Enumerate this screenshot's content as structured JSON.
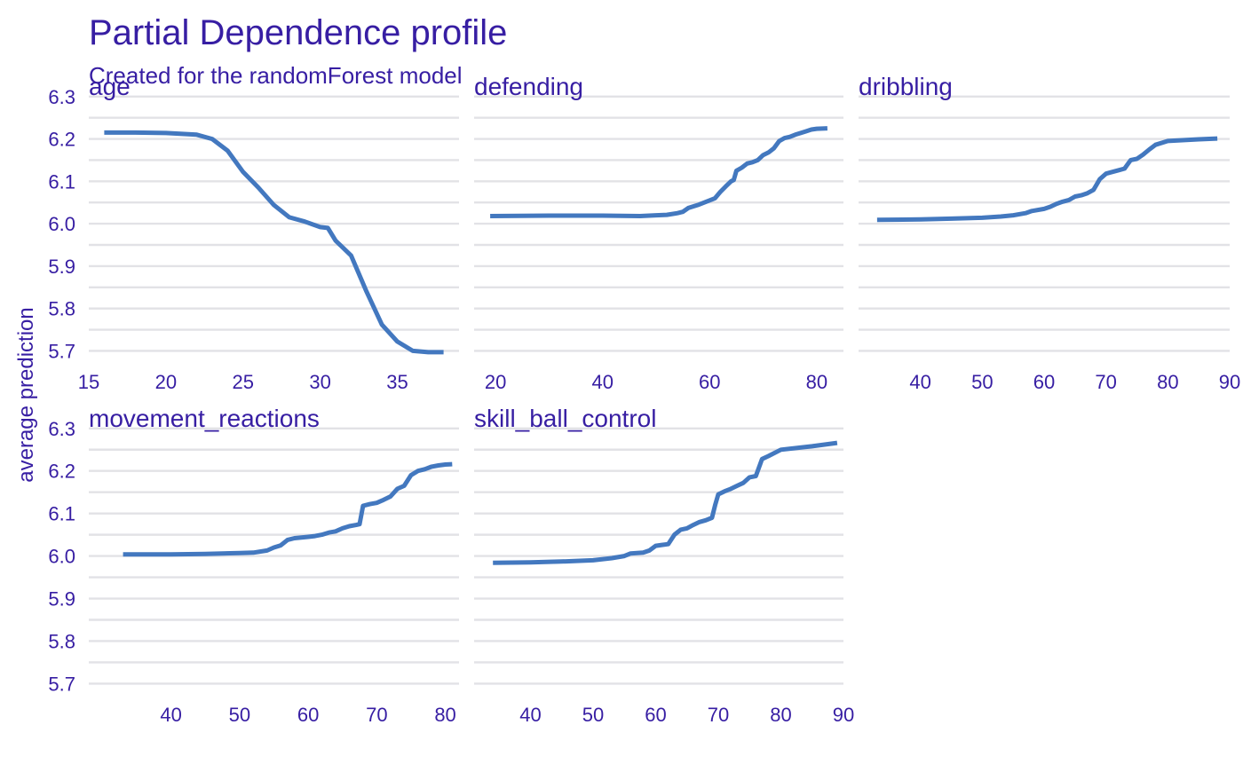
{
  "title": "Partial Dependence profile",
  "subtitle": "Created for the randomForest model",
  "ylabel": "average prediction",
  "colors": {
    "text": "#371ea3",
    "line": "#4378bf",
    "grid": "#e2e2e6"
  },
  "chart_data": {
    "type": "line",
    "ylim": [
      5.68,
      6.31
    ],
    "yticks": [
      5.7,
      5.8,
      5.9,
      6.0,
      6.1,
      6.2,
      6.3
    ],
    "ytick_labels": [
      "5.7",
      "5.8",
      "5.9",
      "6.0",
      "6.1",
      "6.2",
      "6.3"
    ],
    "grid": true,
    "legend": "none",
    "facets": [
      {
        "label": "age",
        "xlim": [
          15,
          39
        ],
        "xticks": [
          15,
          20,
          25,
          30,
          35
        ],
        "xtick_labels": [
          "15",
          "20",
          "25",
          "30",
          "35"
        ],
        "points": [
          [
            16,
            6.215
          ],
          [
            18,
            6.215
          ],
          [
            20,
            6.214
          ],
          [
            22,
            6.21
          ],
          [
            23,
            6.2
          ],
          [
            24,
            6.172
          ],
          [
            25,
            6.122
          ],
          [
            26,
            6.085
          ],
          [
            27,
            6.044
          ],
          [
            28,
            6.015
          ],
          [
            29,
            6.005
          ],
          [
            30,
            5.992
          ],
          [
            30.5,
            5.99
          ],
          [
            31,
            5.96
          ],
          [
            32,
            5.925
          ],
          [
            33,
            5.84
          ],
          [
            34,
            5.762
          ],
          [
            35,
            5.722
          ],
          [
            36,
            5.7
          ],
          [
            37,
            5.697
          ],
          [
            38,
            5.697
          ]
        ]
      },
      {
        "label": "defending",
        "xlim": [
          16,
          85
        ],
        "xticks": [
          20,
          40,
          60,
          80
        ],
        "xtick_labels": [
          "20",
          "40",
          "60",
          "80"
        ],
        "points": [
          [
            19,
            6.018
          ],
          [
            30,
            6.019
          ],
          [
            40,
            6.019
          ],
          [
            47,
            6.018
          ],
          [
            50,
            6.02
          ],
          [
            52,
            6.021
          ],
          [
            54,
            6.025
          ],
          [
            55,
            6.028
          ],
          [
            56,
            6.037
          ],
          [
            58,
            6.045
          ],
          [
            60,
            6.055
          ],
          [
            61,
            6.06
          ],
          [
            62,
            6.075
          ],
          [
            63,
            6.088
          ],
          [
            64,
            6.1
          ],
          [
            64.5,
            6.103
          ],
          [
            65,
            6.125
          ],
          [
            66,
            6.132
          ],
          [
            67,
            6.142
          ],
          [
            68,
            6.145
          ],
          [
            69,
            6.15
          ],
          [
            70,
            6.162
          ],
          [
            71,
            6.168
          ],
          [
            72,
            6.178
          ],
          [
            73,
            6.195
          ],
          [
            74,
            6.202
          ],
          [
            75,
            6.205
          ],
          [
            76,
            6.21
          ],
          [
            77,
            6.214
          ],
          [
            78,
            6.218
          ],
          [
            79,
            6.222
          ],
          [
            80,
            6.224
          ],
          [
            82,
            6.225
          ]
        ]
      },
      {
        "label": "dribbling",
        "xlim": [
          30,
          90
        ],
        "xticks": [
          40,
          50,
          60,
          70,
          80,
          90
        ],
        "xtick_labels": [
          "40",
          "50",
          "60",
          "70",
          "80",
          "90"
        ],
        "points": [
          [
            33,
            6.009
          ],
          [
            40,
            6.01
          ],
          [
            45,
            6.012
          ],
          [
            50,
            6.014
          ],
          [
            53,
            6.017
          ],
          [
            55,
            6.02
          ],
          [
            57,
            6.025
          ],
          [
            58,
            6.03
          ],
          [
            60,
            6.035
          ],
          [
            61,
            6.04
          ],
          [
            62,
            6.047
          ],
          [
            63,
            6.052
          ],
          [
            64,
            6.056
          ],
          [
            65,
            6.064
          ],
          [
            66,
            6.067
          ],
          [
            67,
            6.072
          ],
          [
            68,
            6.08
          ],
          [
            69,
            6.105
          ],
          [
            70,
            6.118
          ],
          [
            71,
            6.122
          ],
          [
            72,
            6.126
          ],
          [
            73,
            6.13
          ],
          [
            74,
            6.15
          ],
          [
            75,
            6.153
          ],
          [
            76,
            6.163
          ],
          [
            77,
            6.175
          ],
          [
            78,
            6.186
          ],
          [
            80,
            6.195
          ],
          [
            85,
            6.199
          ],
          [
            88,
            6.201
          ]
        ]
      },
      {
        "label": "movement_reactions",
        "xlim": [
          28,
          82
        ],
        "xticks": [
          40,
          50,
          60,
          70,
          80
        ],
        "xtick_labels": [
          "40",
          "50",
          "60",
          "70",
          "80"
        ],
        "points": [
          [
            33,
            6.004
          ],
          [
            40,
            6.004
          ],
          [
            45,
            6.005
          ],
          [
            50,
            6.007
          ],
          [
            52,
            6.008
          ],
          [
            54,
            6.013
          ],
          [
            55,
            6.02
          ],
          [
            56,
            6.025
          ],
          [
            57,
            6.038
          ],
          [
            58,
            6.042
          ],
          [
            60,
            6.045
          ],
          [
            61,
            6.047
          ],
          [
            62,
            6.05
          ],
          [
            63,
            6.055
          ],
          [
            64,
            6.058
          ],
          [
            65,
            6.065
          ],
          [
            66,
            6.07
          ],
          [
            67,
            6.073
          ],
          [
            67.5,
            6.075
          ],
          [
            68,
            6.118
          ],
          [
            69,
            6.122
          ],
          [
            70,
            6.125
          ],
          [
            71,
            6.132
          ],
          [
            72,
            6.14
          ],
          [
            73,
            6.158
          ],
          [
            74,
            6.165
          ],
          [
            75,
            6.19
          ],
          [
            76,
            6.2
          ],
          [
            77,
            6.204
          ],
          [
            78,
            6.21
          ],
          [
            79,
            6.213
          ],
          [
            80,
            6.215
          ],
          [
            81,
            6.216
          ]
        ]
      },
      {
        "label": "skill_ball_control",
        "xlim": [
          31,
          90
        ],
        "xticks": [
          40,
          50,
          60,
          70,
          80,
          90
        ],
        "xtick_labels": [
          "40",
          "50",
          "60",
          "70",
          "80",
          "90"
        ],
        "points": [
          [
            34,
            5.984
          ],
          [
            40,
            5.985
          ],
          [
            45,
            5.987
          ],
          [
            50,
            5.99
          ],
          [
            53,
            5.995
          ],
          [
            55,
            6.0
          ],
          [
            56,
            6.006
          ],
          [
            58,
            6.008
          ],
          [
            59,
            6.013
          ],
          [
            60,
            6.024
          ],
          [
            61,
            6.026
          ],
          [
            62,
            6.028
          ],
          [
            63,
            6.05
          ],
          [
            64,
            6.062
          ],
          [
            65,
            6.065
          ],
          [
            66,
            6.073
          ],
          [
            67,
            6.08
          ],
          [
            68,
            6.084
          ],
          [
            69,
            6.09
          ],
          [
            69.5,
            6.12
          ],
          [
            70,
            6.145
          ],
          [
            71,
            6.152
          ],
          [
            72,
            6.158
          ],
          [
            73,
            6.165
          ],
          [
            74,
            6.172
          ],
          [
            75,
            6.185
          ],
          [
            76,
            6.188
          ],
          [
            77,
            6.228
          ],
          [
            78,
            6.235
          ],
          [
            80,
            6.25
          ],
          [
            85,
            6.258
          ],
          [
            89,
            6.266
          ]
        ]
      }
    ]
  }
}
